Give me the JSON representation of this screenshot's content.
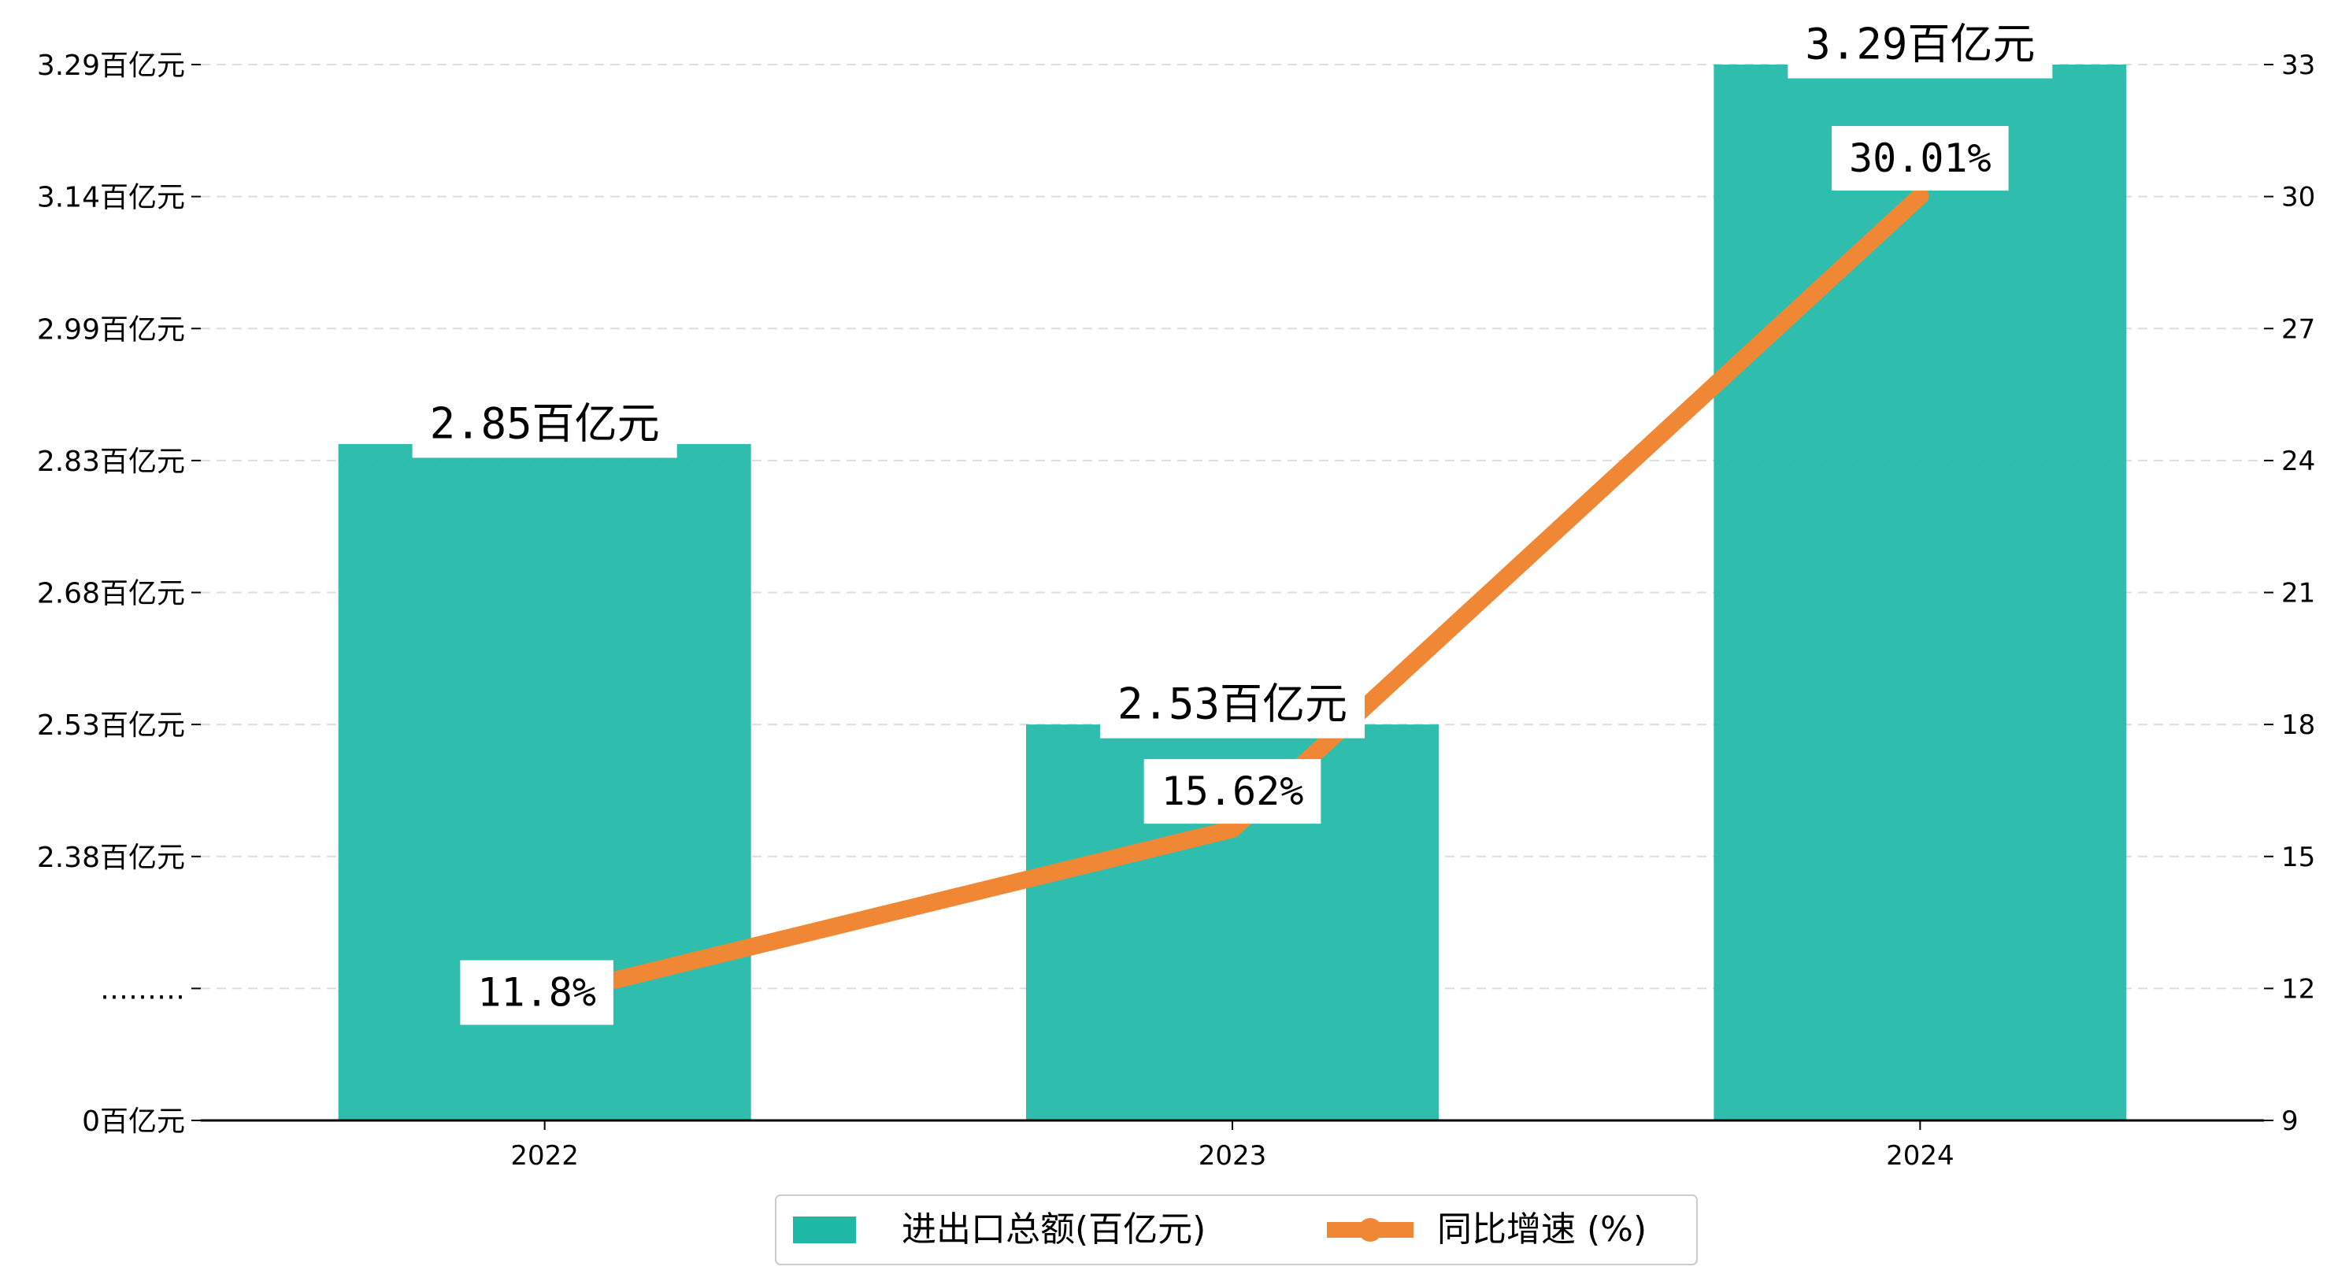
{
  "chart_data": {
    "type": "bar",
    "categories": [
      "2022",
      "2023",
      "2024"
    ],
    "series": [
      {
        "name": "进出口总额(百亿元)",
        "type": "bar",
        "axis": "left",
        "color": "#1db8a6",
        "values": [
          2.85,
          2.53,
          3.29
        ],
        "labels": [
          "2.85百亿元",
          "2.53百亿元",
          "3.29百亿元"
        ]
      },
      {
        "name": "同比增速 (%)",
        "type": "line",
        "axis": "right",
        "color": "#f08734",
        "values": [
          11.8,
          15.62,
          30.01
        ],
        "labels": [
          "11.8%",
          "15.62%",
          "30.01%"
        ]
      }
    ],
    "y_left": {
      "tick_values": [
        0,
        2.23,
        2.38,
        2.53,
        2.68,
        2.83,
        2.99,
        3.14,
        3.29
      ],
      "tick_labels": [
        "0百亿元",
        "………",
        "2.38百亿元",
        "2.53百亿元",
        "2.68百亿元",
        "2.83百亿元",
        "2.99百亿元",
        "3.14百亿元",
        "3.29百亿元"
      ]
    },
    "y_right": {
      "ylim": [
        9,
        33
      ],
      "tick_values": [
        9,
        12,
        15,
        18,
        21,
        24,
        27,
        30,
        33
      ],
      "tick_labels": [
        "9",
        "12",
        "15",
        "18",
        "21",
        "24",
        "27",
        "30",
        "33"
      ]
    },
    "grid": "horizontal dashed",
    "legend": {
      "position": "bottom-center"
    }
  }
}
